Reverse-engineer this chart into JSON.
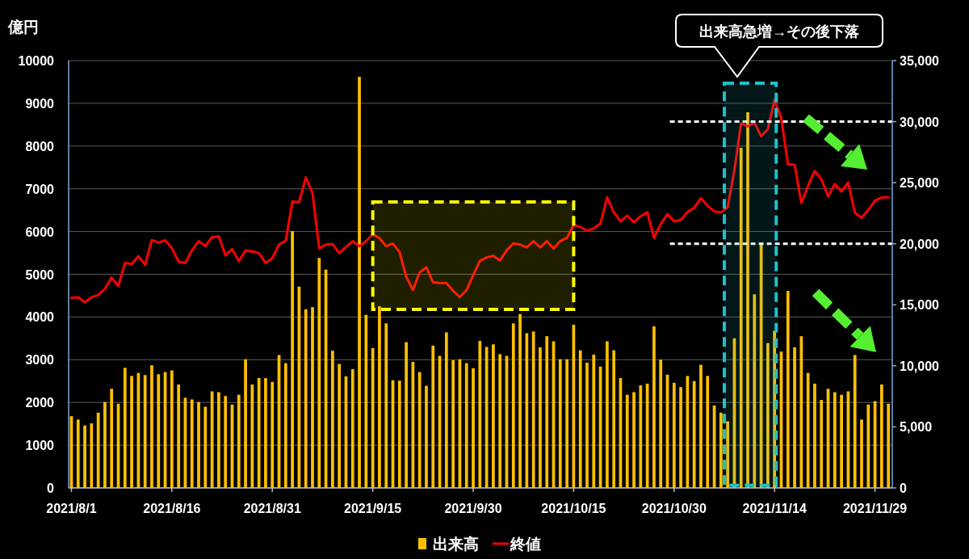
{
  "chart_data": {
    "type": "bar",
    "ylabel": "億円",
    "x": [
      "2021-08-01",
      "2021-08-02",
      "2021-08-03",
      "2021-08-04",
      "2021-08-05",
      "2021-08-06",
      "2021-08-07",
      "2021-08-08",
      "2021-08-09",
      "2021-08-10",
      "2021-08-11",
      "2021-08-12",
      "2021-08-13",
      "2021-08-14",
      "2021-08-15",
      "2021-08-16",
      "2021-08-17",
      "2021-08-18",
      "2021-08-19",
      "2021-08-20",
      "2021-08-21",
      "2021-08-22",
      "2021-08-23",
      "2021-08-24",
      "2021-08-25",
      "2021-08-26",
      "2021-08-27",
      "2021-08-28",
      "2021-08-29",
      "2021-08-30",
      "2021-08-31",
      "2021-09-01",
      "2021-09-02",
      "2021-09-03",
      "2021-09-04",
      "2021-09-05",
      "2021-09-06",
      "2021-09-07",
      "2021-09-08",
      "2021-09-09",
      "2021-09-10",
      "2021-09-11",
      "2021-09-12",
      "2021-09-13",
      "2021-09-14",
      "2021-09-15",
      "2021-09-16",
      "2021-09-17",
      "2021-09-18",
      "2021-09-19",
      "2021-09-20",
      "2021-09-21",
      "2021-09-22",
      "2021-09-23",
      "2021-09-24",
      "2021-09-25",
      "2021-09-26",
      "2021-09-27",
      "2021-09-28",
      "2021-09-29",
      "2021-09-30",
      "2021-10-01",
      "2021-10-02",
      "2021-10-03",
      "2021-10-04",
      "2021-10-05",
      "2021-10-06",
      "2021-10-07",
      "2021-10-08",
      "2021-10-09",
      "2021-10-10",
      "2021-10-11",
      "2021-10-12",
      "2021-10-13",
      "2021-10-14",
      "2021-10-15",
      "2021-10-16",
      "2021-10-17",
      "2021-10-18",
      "2021-10-19",
      "2021-10-20",
      "2021-10-21",
      "2021-10-22",
      "2021-10-23",
      "2021-10-24",
      "2021-10-25",
      "2021-10-26",
      "2021-10-27",
      "2021-10-28",
      "2021-10-29",
      "2021-10-30",
      "2021-10-31",
      "2021-11-01",
      "2021-11-02",
      "2021-11-03",
      "2021-11-04",
      "2021-11-05",
      "2021-11-06",
      "2021-11-07",
      "2021-11-08",
      "2021-11-09",
      "2021-11-10",
      "2021-11-11",
      "2021-11-12",
      "2021-11-13",
      "2021-11-14",
      "2021-11-15",
      "2021-11-16",
      "2021-11-17",
      "2021-11-18",
      "2021-11-19",
      "2021-11-20",
      "2021-11-21",
      "2021-11-22",
      "2021-11-23",
      "2021-11-24",
      "2021-11-25",
      "2021-11-26",
      "2021-11-27",
      "2021-11-28",
      "2021-11-29",
      "2021-11-30",
      "2021-12-01"
    ],
    "xlim": [
      "2021-07-31T14:00",
      "2021-12-01T14:00"
    ],
    "xticks": [
      {
        "value": "2021-08-01",
        "label": "2021/8/1"
      },
      {
        "value": "2021-08-16",
        "label": "2021/8/16"
      },
      {
        "value": "2021-08-31",
        "label": "2021/8/31"
      },
      {
        "value": "2021-09-15",
        "label": "2021/9/15"
      },
      {
        "value": "2021-09-30",
        "label": "2021/9/30"
      },
      {
        "value": "2021-10-15",
        "label": "2021/10/15"
      },
      {
        "value": "2021-10-30",
        "label": "2021/10/30"
      },
      {
        "value": "2021-11-14",
        "label": "2021/11/14"
      },
      {
        "value": "2021-11-29",
        "label": "2021/11/29"
      }
    ],
    "ylim": [
      0,
      10000
    ],
    "yticks": [
      0,
      1000,
      2000,
      3000,
      4000,
      5000,
      6000,
      7000,
      8000,
      9000,
      10000
    ],
    "y2lim": [
      0,
      35000
    ],
    "y2ticks": [
      0,
      {
        "value": 5000,
        "label": "5,000"
      },
      {
        "value": 10000,
        "label": "10,000"
      },
      {
        "value": 15000,
        "label": "15,000"
      },
      {
        "value": 20000,
        "label": "20,000"
      },
      {
        "value": 25000,
        "label": "25,000"
      },
      {
        "value": 30000,
        "label": "30,000"
      },
      {
        "value": 35000,
        "label": "35,000"
      }
    ],
    "grid": "y",
    "legend": "bottom",
    "series": [
      {
        "name": "出来高",
        "color": "#ffc000",
        "values": [
          1680,
          1600,
          1460,
          1510,
          1760,
          2010,
          2320,
          1970,
          2810,
          2620,
          2690,
          2640,
          2870,
          2660,
          2710,
          2750,
          2420,
          2110,
          2070,
          2010,
          1900,
          2260,
          2240,
          2150,
          1950,
          2180,
          3010,
          2420,
          2570,
          2570,
          2480,
          3110,
          2920,
          6010,
          4710,
          4180,
          4230,
          5380,
          5110,
          3210,
          2900,
          2610,
          2780,
          9620,
          4050,
          3270,
          4250,
          3850,
          2520,
          2510,
          3410,
          2950,
          2710,
          2390,
          3330,
          3090,
          3640,
          2990,
          3010,
          2920,
          2800,
          3440,
          3300,
          3360,
          3130,
          3090,
          3850,
          4070,
          3620,
          3660,
          3290,
          3550,
          3430,
          3010,
          3010,
          3820,
          3220,
          2930,
          3120,
          2840,
          3430,
          3220,
          2570,
          2180,
          2240,
          2400,
          2440,
          3780,
          3000,
          2650,
          2460,
          2360,
          2620,
          2500,
          2880,
          2620,
          1930,
          1760,
          1560,
          3500,
          7960,
          8790,
          4530,
          5690,
          3390,
          3680,
          3190,
          4610,
          3290,
          3550,
          2690,
          2440,
          2060,
          2320,
          2240,
          2180,
          2260,
          3110,
          1600,
          1950,
          2030,
          2420,
          1970
        ]
      },
      {
        "name": "終値",
        "type": "line",
        "axis": "y2",
        "color": "#ff0000",
        "values": [
          15560,
          15610,
          15210,
          15610,
          15800,
          16310,
          17230,
          16540,
          18420,
          18350,
          18980,
          18280,
          20300,
          20090,
          20280,
          19630,
          18530,
          18420,
          19460,
          20210,
          19810,
          20550,
          20600,
          19050,
          19560,
          18580,
          19440,
          19370,
          19230,
          18420,
          18810,
          19930,
          20250,
          23460,
          23410,
          25430,
          24150,
          19630,
          19930,
          19970,
          19230,
          19740,
          20210,
          19790,
          20210,
          20790,
          20440,
          19790,
          20020,
          19320,
          17300,
          16210,
          17650,
          18070,
          16840,
          16790,
          16770,
          16140,
          15630,
          16190,
          17420,
          18580,
          18880,
          19000,
          18630,
          19460,
          20020,
          19930,
          19700,
          20210,
          19700,
          20210,
          19600,
          20210,
          20480,
          21530,
          21370,
          21060,
          21250,
          21650,
          23800,
          22570,
          21830,
          22300,
          21760,
          22250,
          22570,
          20480,
          21600,
          22430,
          21830,
          21950,
          22600,
          22950,
          23730,
          23110,
          22640,
          22570,
          22990,
          26010,
          29840,
          29610,
          29910,
          28800,
          29380,
          31770,
          30300,
          26520,
          26470,
          23340,
          24730,
          25960,
          25270,
          23870,
          24900,
          24270,
          25010,
          22530,
          22130,
          22760,
          23530,
          23800,
          23800
        ]
      }
    ],
    "ref_lines": [
      {
        "axis": "y2",
        "value": 30000,
        "color": "#ffffff",
        "line_style": "dotted"
      },
      {
        "axis": "y2",
        "value": 20000,
        "color": "#ffffff",
        "line_style": "dotted"
      }
    ],
    "bands": [
      {
        "axis": "x",
        "from": "2021-09-15",
        "to": "2021-10-15",
        "color": "#ffff00"
      },
      {
        "axis": "x",
        "from": "2021-11-06T12:00",
        "to": "2021-11-14T06:00",
        "color": "#20c0c8"
      }
    ],
    "annotations": [
      "出来高急増→その後下落"
    ]
  }
}
